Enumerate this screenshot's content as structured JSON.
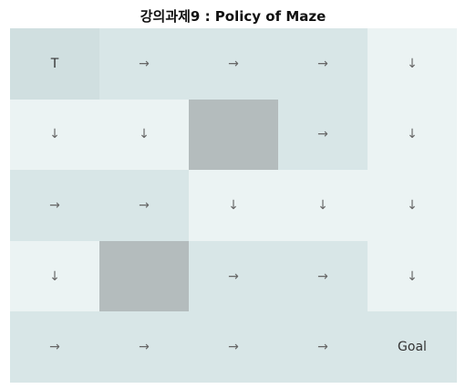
{
  "title": "강의과제9 : Policy of Maze",
  "colors": {
    "light": "#ebf3f3",
    "medium": "#d8e6e7",
    "start": "#d0dfe0",
    "wall": "#b4bcbd"
  },
  "grid": [
    [
      {
        "label": "T",
        "kind": "start",
        "shade": "start"
      },
      {
        "label": "→",
        "kind": "arrow",
        "shade": "medium"
      },
      {
        "label": "→",
        "kind": "arrow",
        "shade": "medium"
      },
      {
        "label": "→",
        "kind": "arrow",
        "shade": "medium"
      },
      {
        "label": "↓",
        "kind": "arrow",
        "shade": "light"
      }
    ],
    [
      {
        "label": "↓",
        "kind": "arrow",
        "shade": "light"
      },
      {
        "label": "↓",
        "kind": "arrow",
        "shade": "light"
      },
      {
        "label": "",
        "kind": "wall",
        "shade": "wall"
      },
      {
        "label": "→",
        "kind": "arrow",
        "shade": "medium"
      },
      {
        "label": "↓",
        "kind": "arrow",
        "shade": "light"
      }
    ],
    [
      {
        "label": "→",
        "kind": "arrow",
        "shade": "medium"
      },
      {
        "label": "→",
        "kind": "arrow",
        "shade": "medium"
      },
      {
        "label": "↓",
        "kind": "arrow",
        "shade": "light"
      },
      {
        "label": "↓",
        "kind": "arrow",
        "shade": "light"
      },
      {
        "label": "↓",
        "kind": "arrow",
        "shade": "light"
      }
    ],
    [
      {
        "label": "↓",
        "kind": "arrow",
        "shade": "light"
      },
      {
        "label": "",
        "kind": "wall",
        "shade": "wall"
      },
      {
        "label": "→",
        "kind": "arrow",
        "shade": "medium"
      },
      {
        "label": "→",
        "kind": "arrow",
        "shade": "medium"
      },
      {
        "label": "↓",
        "kind": "arrow",
        "shade": "light"
      }
    ],
    [
      {
        "label": "→",
        "kind": "arrow",
        "shade": "medium"
      },
      {
        "label": "→",
        "kind": "arrow",
        "shade": "medium"
      },
      {
        "label": "→",
        "kind": "arrow",
        "shade": "medium"
      },
      {
        "label": "→",
        "kind": "arrow",
        "shade": "medium"
      },
      {
        "label": "Goal",
        "kind": "goal",
        "shade": "medium"
      }
    ]
  ]
}
